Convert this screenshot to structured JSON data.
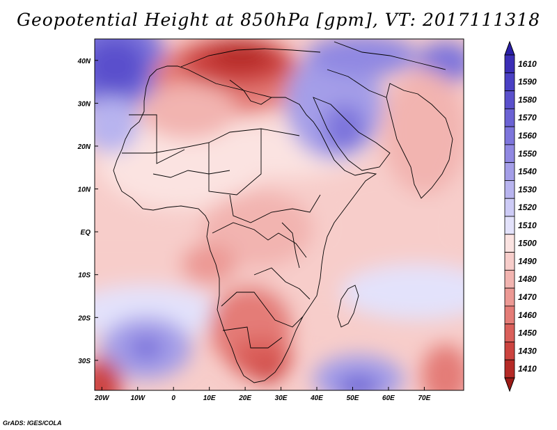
{
  "title": "Geopotential Height at 850hPa [gpm], VT: 2017111318",
  "credit": "GrADS: IGES/COLA",
  "map": {
    "variable": "Geopotential Height",
    "level": "850hPa",
    "units": "gpm",
    "valid_time": "2017111318",
    "lon_range": [
      -22,
      81
    ],
    "lat_range": [
      -37,
      45
    ],
    "x_ticks": [
      {
        "label": "20W",
        "value": -20
      },
      {
        "label": "10W",
        "value": -10
      },
      {
        "label": "0",
        "value": 0
      },
      {
        "label": "10E",
        "value": 10
      },
      {
        "label": "20E",
        "value": 20
      },
      {
        "label": "30E",
        "value": 30
      },
      {
        "label": "40E",
        "value": 40
      },
      {
        "label": "50E",
        "value": 50
      },
      {
        "label": "60E",
        "value": 60
      },
      {
        "label": "70E",
        "value": 70
      }
    ],
    "y_ticks": [
      {
        "label": "40N",
        "value": 40
      },
      {
        "label": "30N",
        "value": 30
      },
      {
        "label": "20N",
        "value": 20
      },
      {
        "label": "10N",
        "value": 10
      },
      {
        "label": "EQ",
        "value": 0
      },
      {
        "label": "10S",
        "value": -10
      },
      {
        "label": "20S",
        "value": -20
      },
      {
        "label": "30S",
        "value": -30
      }
    ]
  },
  "colorbar": {
    "levels": [
      "1610",
      "1590",
      "1580",
      "1570",
      "1560",
      "1550",
      "1540",
      "1530",
      "1520",
      "1510",
      "1500",
      "1490",
      "1480",
      "1470",
      "1460",
      "1450",
      "1430",
      "1410"
    ],
    "colors": [
      "#3b2eb6",
      "#4a40c4",
      "#5a50cc",
      "#6b62d4",
      "#7d75dc",
      "#9088e2",
      "#a49ee8",
      "#b8b4ef",
      "#cdcbf6",
      "#e3e2fb",
      "#fbe3e1",
      "#f7cdca",
      "#f2b4b0",
      "#ec9994",
      "#e47c77",
      "#da5f5a",
      "#cc433f",
      "#b52a26"
    ],
    "top_arrow_color": "#2a1fa8",
    "bottom_arrow_color": "#9c1a16"
  }
}
